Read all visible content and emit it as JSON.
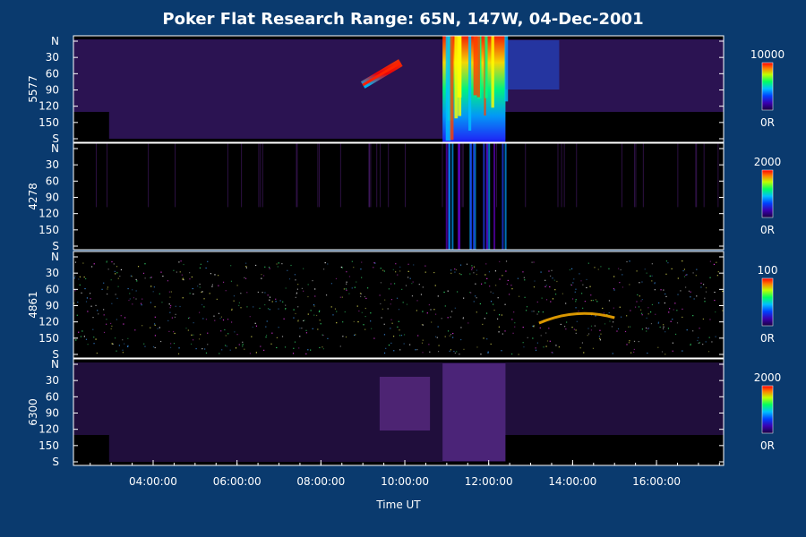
{
  "chart_data": {
    "type": "heatmap",
    "title": "Poker Flat Research Range: 65N, 147W, 04-Dec-2001",
    "xlabel": "Time UT",
    "x_ticks": [
      "04:00:00",
      "06:00:00",
      "08:00:00",
      "10:00:00",
      "12:00:00",
      "14:00:00",
      "16:00:00"
    ],
    "x_tick_hours": [
      4,
      6,
      8,
      10,
      12,
      14,
      16
    ],
    "xlim_hours": [
      2.1,
      17.6
    ],
    "colors": {
      "background": "#0a3a6e",
      "plot": "#000000",
      "axis": "#ffffff",
      "diffuse": "#3a1a6e"
    },
    "panels": [
      {
        "ylabel": "5577",
        "y_ticks": [
          "N",
          "30",
          "60",
          "90",
          "120",
          "150",
          "S"
        ],
        "colorbar": {
          "max_label": "10000",
          "min_label": "0R",
          "max": 10000
        },
        "features": [
          {
            "kind": "arc",
            "start_hour": 9.0,
            "end_hour": 9.9,
            "level": 0.85
          },
          {
            "kind": "breakup",
            "start_hour": 10.9,
            "end_hour": 12.4,
            "level": 1.0
          }
        ]
      },
      {
        "ylabel": "4278",
        "y_ticks": [
          "N",
          "30",
          "60",
          "90",
          "120",
          "150",
          "S"
        ],
        "colorbar": {
          "max_label": "2000",
          "min_label": "0R",
          "max": 2000
        },
        "features": [
          {
            "kind": "streaks",
            "start_hour": 10.9,
            "end_hour": 12.5,
            "level": 0.6
          }
        ]
      },
      {
        "ylabel": "4861",
        "y_ticks": [
          "N",
          "30",
          "60",
          "90",
          "120",
          "150",
          "S"
        ],
        "colorbar": {
          "max_label": "100",
          "min_label": "0R",
          "max": 100
        },
        "features": [
          {
            "kind": "noise",
            "start_hour": 2.1,
            "end_hour": 17.6,
            "level": 0.3
          },
          {
            "kind": "proton-arc",
            "start_hour": 13.2,
            "end_hour": 15.0,
            "level": 0.8
          }
        ]
      },
      {
        "ylabel": "6300",
        "y_ticks": [
          "N",
          "30",
          "60",
          "90",
          "120",
          "150",
          "S"
        ],
        "colorbar": {
          "max_label": "2000",
          "min_label": "0R",
          "max": 2000
        },
        "features": [
          {
            "kind": "diffuse",
            "start_hour": 2.1,
            "end_hour": 17.6,
            "level": 0.25
          },
          {
            "kind": "breakup",
            "start_hour": 10.9,
            "end_hour": 12.4,
            "level": 0.45
          }
        ]
      }
    ]
  }
}
